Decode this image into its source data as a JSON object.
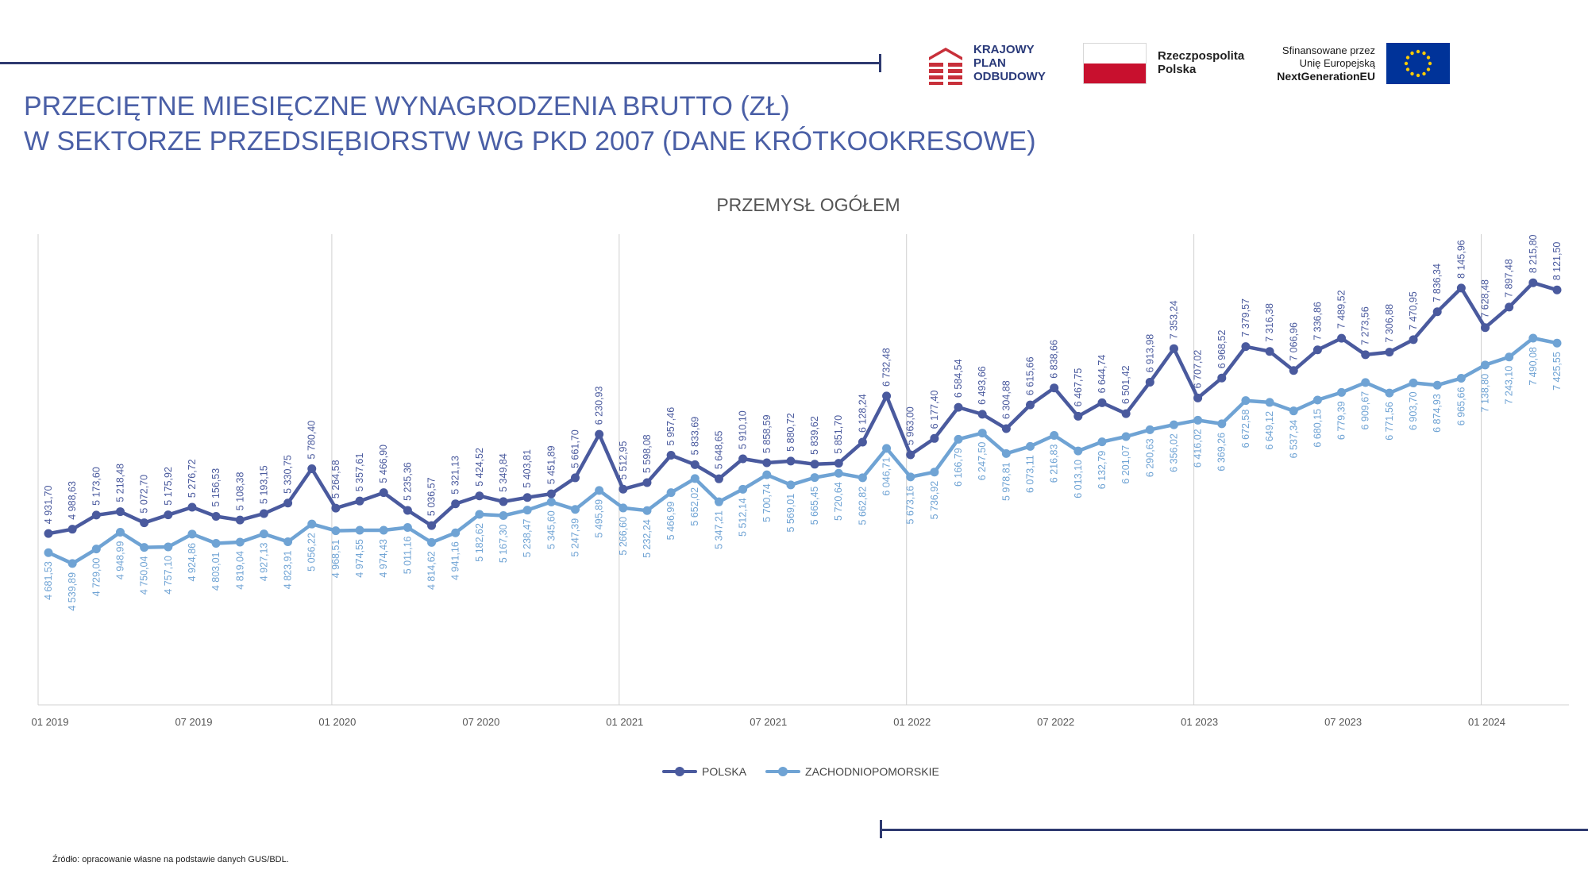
{
  "title": {
    "line1": "PRZECIĘTNE MIESIĘCZNE WYNAGRODZENIA BRUTTO (ZŁ)",
    "line2": "W SEKTORZE PRZEDSIĘBIORSTW WG PKD 2007 (DANE KRÓTKOOKRESOWE)"
  },
  "logos": {
    "kpo": {
      "line1": "KRAJOWY",
      "line2": "PLAN",
      "line3": "ODBUDOWY"
    },
    "rp": {
      "line1": "Rzeczpospolita",
      "line2": "Polska"
    },
    "eu": {
      "line1": "Sfinansowane przez",
      "line2": "Unię Europejską",
      "line3": "NextGenerationEU"
    }
  },
  "source": "Źródło: opracowanie własne na podstawie danych GUS/BDL.",
  "colors": {
    "title": "#4a5fa6",
    "rule": "#2e3a70",
    "polska": "#4a5a9e",
    "zachodniopomorskie": "#6fa3d4",
    "kpo_red": "#c8303a",
    "flag_red": "#c8102e",
    "eu_blue": "#003399",
    "eu_star": "#ffcc00"
  },
  "chart_data": {
    "type": "line",
    "title": "PRZEMYSŁ OGÓŁEM",
    "xlabel": "",
    "ylabel": "",
    "ylim": [
      3000,
      8800
    ],
    "x_ticks": [
      "01 2019",
      "07 2019",
      "01 2020",
      "07 2020",
      "01 2021",
      "07 2021",
      "01 2022",
      "07 2022",
      "01 2023",
      "07 2023",
      "01 2024"
    ],
    "x_tick_every": 6,
    "vertical_gridlines_at_january": true,
    "legend_position": "bottom",
    "categories": [
      "01 2019",
      "02 2019",
      "03 2019",
      "04 2019",
      "05 2019",
      "06 2019",
      "07 2019",
      "08 2019",
      "09 2019",
      "10 2019",
      "11 2019",
      "12 2019",
      "01 2020",
      "02 2020",
      "03 2020",
      "04 2020",
      "05 2020",
      "06 2020",
      "07 2020",
      "08 2020",
      "09 2020",
      "10 2020",
      "11 2020",
      "12 2020",
      "01 2021",
      "02 2021",
      "03 2021",
      "04 2021",
      "05 2021",
      "06 2021",
      "07 2021",
      "08 2021",
      "09 2021",
      "10 2021",
      "11 2021",
      "12 2021",
      "01 2022",
      "02 2022",
      "03 2022",
      "04 2022",
      "05 2022",
      "06 2022",
      "07 2022",
      "08 2022",
      "09 2022",
      "10 2022",
      "11 2022",
      "12 2022",
      "01 2023",
      "02 2023",
      "03 2023",
      "04 2023",
      "05 2023",
      "06 2023",
      "07 2023",
      "08 2023",
      "09 2023",
      "10 2023",
      "11 2023",
      "12 2023",
      "01 2024",
      "02 2024",
      "03 2024",
      "04 2024"
    ],
    "series": [
      {
        "name": "POLSKA",
        "labels_above": true,
        "values": [
          4931.7,
          4988.63,
          5173.6,
          5218.48,
          5072.7,
          5175.92,
          5276.72,
          5156.53,
          5108.38,
          5193.15,
          5330.75,
          5780.4,
          5264.58,
          5357.61,
          5466.9,
          5235.36,
          5036.57,
          5321.13,
          5424.52,
          5349.84,
          5403.81,
          5451.89,
          5661.7,
          6230.93,
          5512.95,
          5598.08,
          5957.46,
          5833.69,
          5648.65,
          5910.1,
          5858.59,
          5880.72,
          5839.62,
          5851.7,
          6128.24,
          6732.48,
          5963.0,
          6177.4,
          6584.54,
          6493.66,
          6304.88,
          6615.66,
          6838.66,
          6467.75,
          6644.74,
          6501.42,
          6913.98,
          7353.24,
          6707.02,
          6968.52,
          7379.57,
          7316.38,
          7066.96,
          7336.86,
          7489.52,
          7273.56,
          7306.88,
          7470.95,
          7836.34,
          8145.96,
          7628.48,
          7897.48,
          8215.8,
          8121.5
        ],
        "labels": [
          "4 931,70",
          "4 988,63",
          "5 173,60",
          "5 218,48",
          "5 072,70",
          "5 175,92",
          "5 276,72",
          "5 156,53",
          "5 108,38",
          "5 193,15",
          "5 330,75",
          "5 780,40",
          "5 264,58",
          "5 357,61",
          "5 466,90",
          "5 235,36",
          "5 036,57",
          "5 321,13",
          "5 424,52",
          "5 349,84",
          "5 403,81",
          "5 451,89",
          "5 661,70",
          "6 230,93",
          "5 512,95",
          "5 598,08",
          "5 957,46",
          "5 833,69",
          "5 648,65",
          "5 910,10",
          "5 858,59",
          "5 880,72",
          "5 839,62",
          "5 851,70",
          "6 128,24",
          "6 732,48",
          "5 963,00",
          "6 177,40",
          "6 584,54",
          "6 493,66",
          "6 304,88",
          "6 615,66",
          "6 838,66",
          "6 467,75",
          "6 644,74",
          "6 501,42",
          "6 913,98",
          "7 353,24",
          "6 707,02",
          "6 968,52",
          "7 379,57",
          "7 316,38",
          "7 066,96",
          "7 336,86",
          "7 489,52",
          "7 273,56",
          "7 306,88",
          "7 470,95",
          "7 836,34",
          "8 145,96",
          "7 628,48",
          "7 897,48",
          "8 215,80",
          "8 121,50"
        ]
      },
      {
        "name": "ZACHODNIOPOMORSKIE",
        "labels_above": false,
        "values": [
          4681.53,
          4539.89,
          4729.0,
          4948.99,
          4750.04,
          4757.1,
          4924.86,
          4803.01,
          4819.04,
          4927.13,
          4823.91,
          5056.22,
          4968.51,
          4974.55,
          4974.43,
          5011.16,
          4814.62,
          4941.16,
          5182.62,
          5167.3,
          5238.47,
          5345.6,
          5247.39,
          5495.89,
          5266.6,
          5232.24,
          5466.99,
          5652.02,
          5347.21,
          5512.14,
          5700.74,
          5569.01,
          5665.45,
          5720.64,
          5662.82,
          6046.71,
          5673.16,
          5736.92,
          6166.79,
          6247.5,
          5978.81,
          6073.11,
          6216.83,
          6013.1,
          6132.79,
          6201.07,
          6290.63,
          6356.02,
          6416.02,
          6369.26,
          6672.58,
          6649.12,
          6537.34,
          6680.15,
          6779.39,
          6909.67,
          6771.56,
          6903.7,
          6874.93,
          6965.66,
          7138.8,
          7243.1,
          7490.08,
          7425.55
        ],
        "labels": [
          "4 681,53",
          "4 539,89",
          "4 729,00",
          "4 948,99",
          "4 750,04",
          "4 757,10",
          "4 924,86",
          "4 803,01",
          "4 819,04",
          "4 927,13",
          "4 823,91",
          "5 056,22",
          "4 968,51",
          "4 974,55",
          "4 974,43",
          "5 011,16",
          "4 814,62",
          "4 941,16",
          "5 182,62",
          "5 167,30",
          "5 238,47",
          "5 345,60",
          "5 247,39",
          "5 495,89",
          "5 266,60",
          "5 232,24",
          "5 466,99",
          "5 652,02",
          "5 347,21",
          "5 512,14",
          "5 700,74",
          "5 569,01",
          "5 665,45",
          "5 720,64",
          "5 662,82",
          "6 046,71",
          "5 673,16",
          "5 736,92",
          "6 166,79",
          "6 247,50",
          "5 978,81",
          "6 073,11",
          "6 216,83",
          "6 013,10",
          "6 132,79",
          "6 201,07",
          "6 290,63",
          "6 356,02",
          "6 416,02",
          "6 369,26",
          "6 672,58",
          "6 649,12",
          "6 537,34",
          "6 680,15",
          "6 779,39",
          "6 909,67",
          "6 771,56",
          "6 903,70",
          "6 874,93",
          "6 965,66",
          "7 138,80",
          "7 243,10",
          "7 490,08",
          "7 425,55"
        ]
      }
    ]
  }
}
